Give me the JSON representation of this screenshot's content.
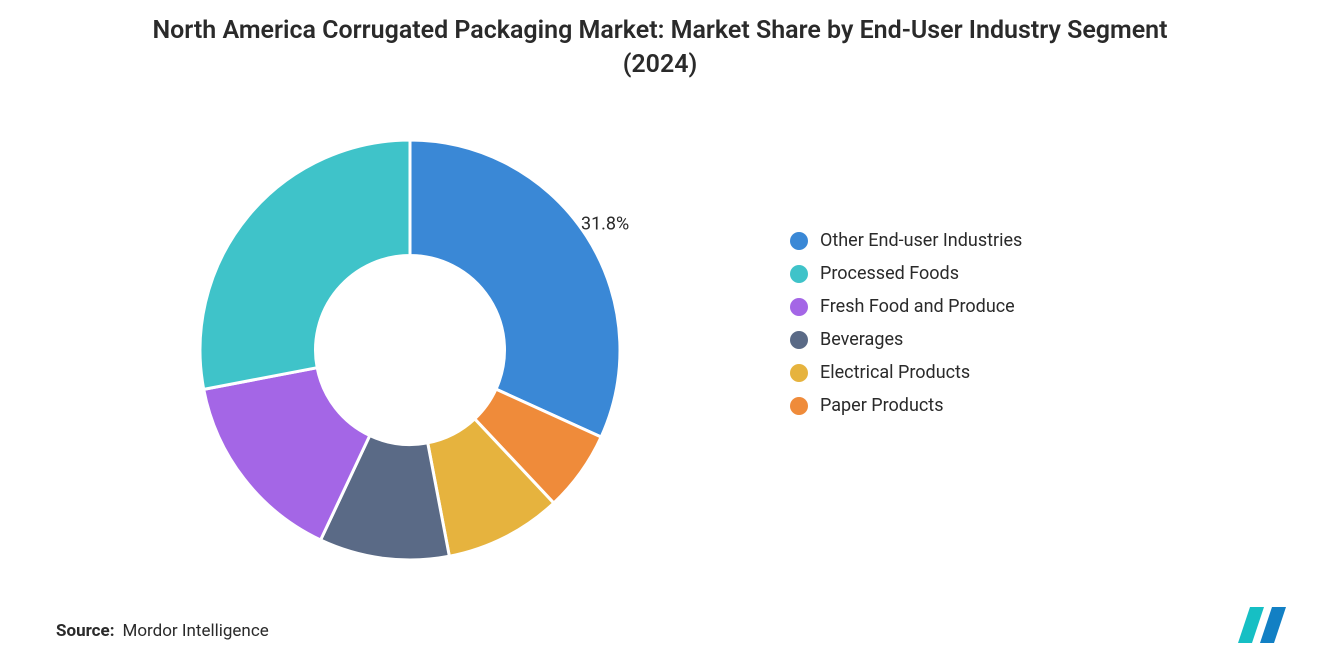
{
  "chart": {
    "type": "donut",
    "title": "North America Corrugated Packaging Market: Market Share by End-User Industry Segment (2024)",
    "title_fontsize": 25,
    "title_fontweight": 600,
    "title_color": "#2a2a2a",
    "background_color": "#ffffff",
    "donut_inner_ratio": 0.45,
    "stroke_color": "#ffffff",
    "stroke_width": 3,
    "series": [
      {
        "label": "Other End-user Industries",
        "value": 31.8,
        "color": "#3a88d6",
        "show_label": true,
        "label_text": "31.8%"
      },
      {
        "label": "Processed Foods",
        "value": 28.0,
        "color": "#3fc3c9",
        "show_label": false
      },
      {
        "label": "Fresh Food and Produce",
        "value": 15.0,
        "color": "#a466e6",
        "show_label": false
      },
      {
        "label": "Beverages",
        "value": 10.0,
        "color": "#5a6a86",
        "show_label": false
      },
      {
        "label": "Electrical Products",
        "value": 9.0,
        "color": "#e6b33e",
        "show_label": false
      },
      {
        "label": "Paper Products",
        "value": 6.2,
        "color": "#ef8b3a",
        "show_label": false
      }
    ],
    "legend": {
      "position": "right",
      "swatch_shape": "circle",
      "swatch_size": 18,
      "fontsize": 18,
      "text_color": "#2a2a2a"
    },
    "start_angle_deg": -90,
    "direction": "clockwise",
    "slice_order": [
      "Other End-user Industries",
      "Paper Products",
      "Electrical Products",
      "Beverages",
      "Fresh Food and Produce",
      "Processed Foods"
    ]
  },
  "source": {
    "key": "Source:",
    "value": "Mordor Intelligence"
  },
  "logo": {
    "bars": [
      {
        "color": "#16bfc4"
      },
      {
        "color": "#1280c4"
      }
    ]
  }
}
